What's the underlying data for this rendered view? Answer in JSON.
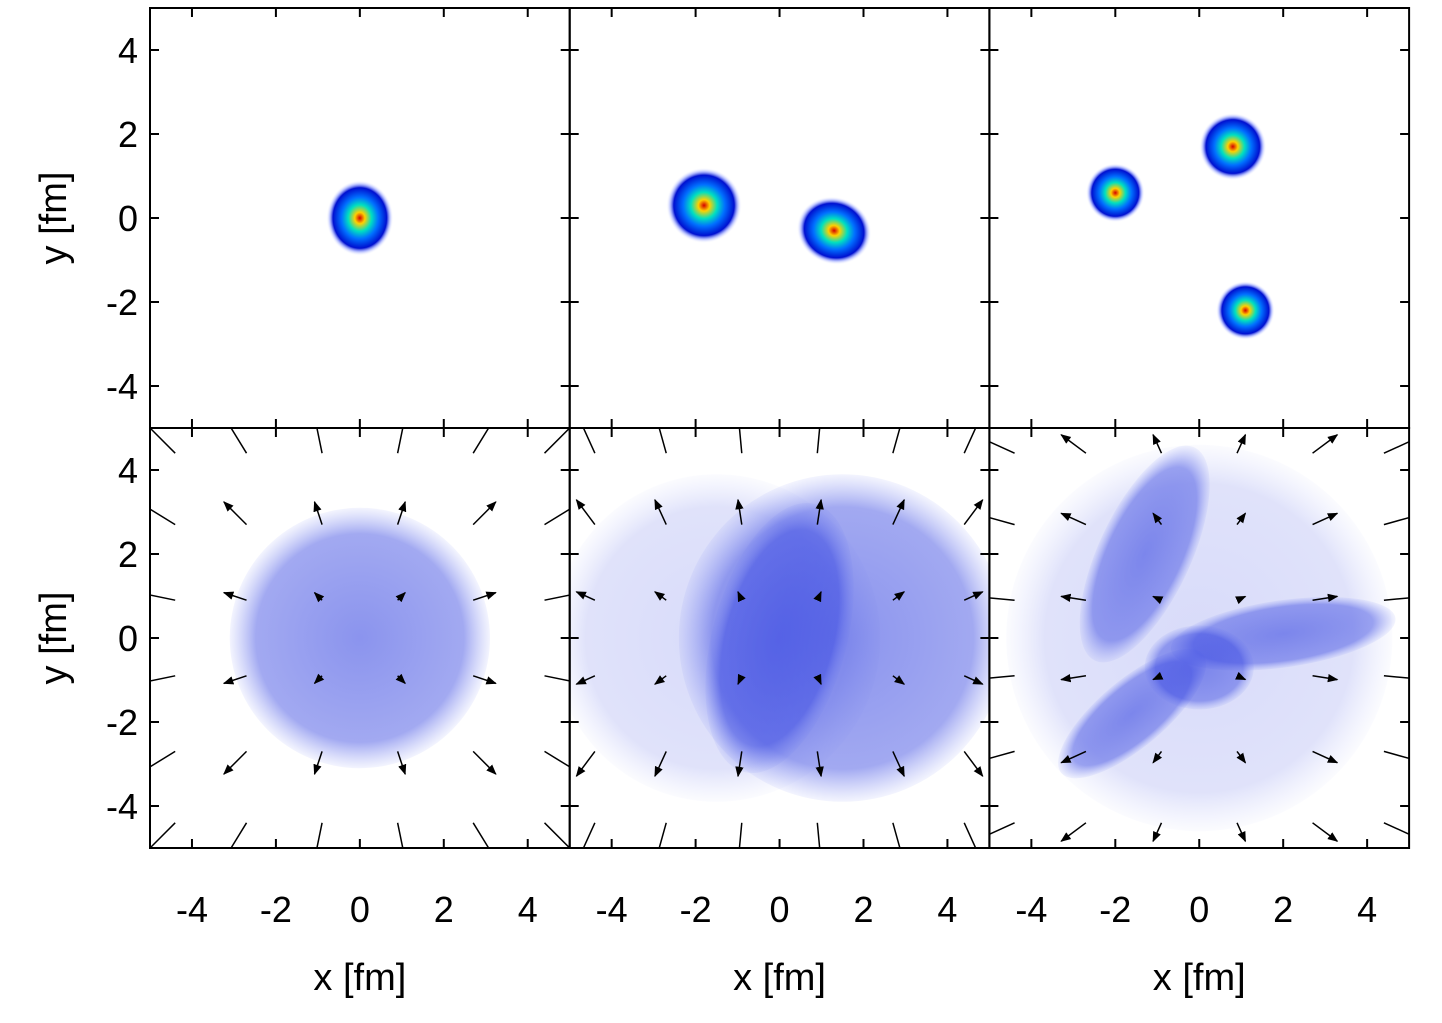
{
  "chart_data": [
    {
      "type": "heatmap",
      "colormap": "jet",
      "ylabel": "y [fm]",
      "xlim": [
        -5,
        5
      ],
      "ylim": [
        -5,
        5
      ],
      "xticks": [
        -4,
        -2,
        0,
        2,
        4
      ],
      "yticks": [
        4,
        2,
        0,
        -2,
        -4
      ],
      "blobs": [
        [
          0,
          0,
          0.8,
          0.9,
          0
        ]
      ],
      "arrows": []
    },
    {
      "type": "heatmap",
      "colormap": "jet",
      "xlim": [
        -5,
        5
      ],
      "ylim": [
        -5,
        5
      ],
      "xticks": [
        -4,
        -2,
        0,
        2,
        4
      ],
      "yticks": [
        4,
        2,
        0,
        -2,
        -4
      ],
      "blobs": [
        [
          -1.8,
          0.3,
          0.9,
          0.9,
          0
        ],
        [
          1.3,
          -0.3,
          0.9,
          0.8,
          20
        ]
      ],
      "arrows": []
    },
    {
      "type": "heatmap",
      "colormap": "jet",
      "xlim": [
        -5,
        5
      ],
      "ylim": [
        -5,
        5
      ],
      "xticks": [
        -4,
        -2,
        0,
        2,
        4
      ],
      "yticks": [
        4,
        2,
        0,
        -2,
        -4
      ],
      "blobs": [
        [
          -2,
          0.6,
          0.7,
          0.7,
          0
        ],
        [
          0.8,
          1.7,
          0.8,
          0.8,
          0
        ],
        [
          1.1,
          -2.2,
          0.7,
          0.7,
          0
        ]
      ],
      "arrows": []
    },
    {
      "type": "heatmap",
      "colormap": "blue",
      "xlabel": "x [fm]",
      "ylabel": "y [fm]",
      "xlim": [
        -5,
        5
      ],
      "ylim": [
        -5,
        5
      ],
      "xticks": [
        -4,
        -2,
        0,
        2,
        4
      ],
      "yticks": [
        4,
        2,
        0,
        -2,
        -4
      ],
      "blobs": [
        [
          0,
          0,
          3.1,
          3.1,
          0
        ]
      ],
      "arrows": [
        [
          -4.4,
          4.4,
          -0.88,
          0.88
        ],
        [
          -2.7,
          4.4,
          -0.54,
          0.88
        ],
        [
          -0.9,
          4.4,
          -0.18,
          0.88
        ],
        [
          0.9,
          4.4,
          0.18,
          0.88
        ],
        [
          2.7,
          4.4,
          0.54,
          0.88
        ],
        [
          4.4,
          4.4,
          0.88,
          0.88
        ],
        [
          -4.4,
          2.7,
          -0.88,
          0.54
        ],
        [
          -2.7,
          2.7,
          -0.54,
          0.54
        ],
        [
          -0.9,
          2.7,
          -0.18,
          0.54
        ],
        [
          0.9,
          2.7,
          0.18,
          0.54
        ],
        [
          2.7,
          2.7,
          0.54,
          0.54
        ],
        [
          4.4,
          2.7,
          0.88,
          0.54
        ],
        [
          -4.4,
          0.9,
          -0.88,
          0.18
        ],
        [
          -2.7,
          0.9,
          -0.54,
          0.18
        ],
        [
          -0.9,
          0.9,
          -0.18,
          0.18
        ],
        [
          0.9,
          0.9,
          0.18,
          0.18
        ],
        [
          2.7,
          0.9,
          0.54,
          0.18
        ],
        [
          4.4,
          0.9,
          0.88,
          0.18
        ],
        [
          -4.4,
          -0.9,
          -0.88,
          -0.18
        ],
        [
          -2.7,
          -0.9,
          -0.54,
          -0.18
        ],
        [
          -0.9,
          -0.9,
          -0.18,
          -0.18
        ],
        [
          0.9,
          -0.9,
          0.18,
          -0.18
        ],
        [
          2.7,
          -0.9,
          0.54,
          -0.18
        ],
        [
          4.4,
          -0.9,
          0.88,
          -0.18
        ],
        [
          -4.4,
          -2.7,
          -0.88,
          -0.54
        ],
        [
          -2.7,
          -2.7,
          -0.54,
          -0.54
        ],
        [
          -0.9,
          -2.7,
          -0.18,
          -0.54
        ],
        [
          0.9,
          -2.7,
          0.18,
          -0.54
        ],
        [
          2.7,
          -2.7,
          0.54,
          -0.54
        ],
        [
          4.4,
          -2.7,
          0.88,
          -0.54
        ],
        [
          -4.4,
          -4.4,
          -0.88,
          -0.88
        ],
        [
          -2.7,
          -4.4,
          -0.54,
          -0.88
        ],
        [
          -0.9,
          -4.4,
          -0.18,
          -0.88
        ],
        [
          0.9,
          -4.4,
          0.18,
          -0.88
        ],
        [
          2.7,
          -4.4,
          0.54,
          -0.88
        ],
        [
          4.4,
          -4.4,
          0.88,
          -0.88
        ]
      ]
    },
    {
      "type": "heatmap",
      "colormap": "blue",
      "xlabel": "x [fm]",
      "xlim": [
        -5,
        5
      ],
      "ylim": [
        -5,
        5
      ],
      "xticks": [
        -4,
        -2,
        0,
        2,
        4
      ],
      "yticks": [
        4,
        2,
        0,
        -2,
        -4
      ],
      "blobs": [
        [
          -1.5,
          0,
          3.9,
          3.9,
          0
        ],
        [
          1.5,
          0,
          3.9,
          3.9,
          0
        ],
        [
          0,
          0,
          1.6,
          3.3,
          15
        ]
      ],
      "arrows": [
        [
          -4.4,
          4.4,
          -0.44,
          0.97
        ],
        [
          -2.7,
          4.4,
          -0.27,
          0.97
        ],
        [
          -0.9,
          4.4,
          -0.09,
          0.97
        ],
        [
          0.9,
          4.4,
          0.09,
          0.97
        ],
        [
          2.7,
          4.4,
          0.27,
          0.97
        ],
        [
          4.4,
          4.4,
          0.44,
          0.97
        ],
        [
          -4.4,
          2.7,
          -0.44,
          0.59
        ],
        [
          -2.7,
          2.7,
          -0.27,
          0.59
        ],
        [
          -0.9,
          2.7,
          -0.09,
          0.59
        ],
        [
          0.9,
          2.7,
          0.09,
          0.59
        ],
        [
          2.7,
          2.7,
          0.27,
          0.59
        ],
        [
          4.4,
          2.7,
          0.44,
          0.59
        ],
        [
          -4.4,
          0.9,
          -0.44,
          0.2
        ],
        [
          -2.7,
          0.9,
          -0.27,
          0.2
        ],
        [
          -0.9,
          0.9,
          -0.09,
          0.2
        ],
        [
          0.9,
          0.9,
          0.09,
          0.2
        ],
        [
          2.7,
          0.9,
          0.27,
          0.2
        ],
        [
          4.4,
          0.9,
          0.44,
          0.2
        ],
        [
          -4.4,
          -0.9,
          -0.44,
          -0.2
        ],
        [
          -2.7,
          -0.9,
          -0.27,
          -0.2
        ],
        [
          -0.9,
          -0.9,
          -0.09,
          -0.2
        ],
        [
          0.9,
          -0.9,
          0.09,
          -0.2
        ],
        [
          2.7,
          -0.9,
          0.27,
          -0.2
        ],
        [
          4.4,
          -0.9,
          0.44,
          -0.2
        ],
        [
          -4.4,
          -2.7,
          -0.44,
          -0.59
        ],
        [
          -2.7,
          -2.7,
          -0.27,
          -0.59
        ],
        [
          -0.9,
          -2.7,
          -0.09,
          -0.59
        ],
        [
          0.9,
          -2.7,
          0.09,
          -0.59
        ],
        [
          2.7,
          -2.7,
          0.27,
          -0.59
        ],
        [
          4.4,
          -2.7,
          0.44,
          -0.59
        ],
        [
          -4.4,
          -4.4,
          -0.44,
          -0.97
        ],
        [
          -2.7,
          -4.4,
          -0.27,
          -0.97
        ],
        [
          -0.9,
          -4.4,
          -0.09,
          -0.97
        ],
        [
          0.9,
          -4.4,
          0.09,
          -0.97
        ],
        [
          2.7,
          -4.4,
          0.27,
          -0.97
        ],
        [
          4.4,
          -4.4,
          0.44,
          -0.97
        ]
      ]
    },
    {
      "type": "heatmap",
      "colormap": "blue",
      "xlabel": "x [fm]",
      "xlim": [
        -5,
        5
      ],
      "ylim": [
        -5,
        5
      ],
      "xticks": [
        -4,
        -2,
        0,
        2,
        4
      ],
      "yticks": [
        4,
        2,
        0,
        -2,
        -4
      ],
      "blobs": [
        [
          0,
          0,
          4.6,
          4.6,
          0
        ],
        [
          -1.3,
          2,
          1.1,
          2.8,
          25
        ],
        [
          2,
          0.1,
          2.7,
          0.8,
          -8
        ],
        [
          -1.6,
          -1.8,
          0.8,
          2.2,
          50
        ],
        [
          0,
          -0.7,
          1.3,
          1,
          0
        ]
      ],
      "arrows": [
        [
          -4.4,
          4.4,
          -0.97,
          0.44
        ],
        [
          -2.7,
          4.4,
          -0.59,
          0.44
        ],
        [
          -0.9,
          4.4,
          -0.2,
          0.44
        ],
        [
          0.9,
          4.4,
          0.2,
          0.44
        ],
        [
          2.7,
          4.4,
          0.59,
          0.44
        ],
        [
          4.4,
          4.4,
          0.97,
          0.44
        ],
        [
          -4.4,
          2.7,
          -0.97,
          0.27
        ],
        [
          -2.7,
          2.7,
          -0.59,
          0.27
        ],
        [
          -0.9,
          2.7,
          -0.2,
          0.27
        ],
        [
          0.9,
          2.7,
          0.2,
          0.27
        ],
        [
          2.7,
          2.7,
          0.59,
          0.27
        ],
        [
          4.4,
          2.7,
          0.97,
          0.27
        ],
        [
          -4.4,
          0.9,
          -0.97,
          0.09
        ],
        [
          -2.7,
          0.9,
          -0.59,
          0.09
        ],
        [
          -0.9,
          0.9,
          -0.2,
          0.09
        ],
        [
          0.9,
          0.9,
          0.2,
          0.09
        ],
        [
          2.7,
          0.9,
          0.59,
          0.09
        ],
        [
          4.4,
          0.9,
          0.97,
          0.09
        ],
        [
          -4.4,
          -0.9,
          -0.97,
          -0.09
        ],
        [
          -2.7,
          -0.9,
          -0.59,
          -0.09
        ],
        [
          -0.9,
          -0.9,
          -0.2,
          -0.09
        ],
        [
          0.9,
          -0.9,
          0.2,
          -0.09
        ],
        [
          2.7,
          -0.9,
          0.59,
          -0.09
        ],
        [
          4.4,
          -0.9,
          0.97,
          -0.09
        ],
        [
          -4.4,
          -2.7,
          -0.97,
          -0.27
        ],
        [
          -2.7,
          -2.7,
          -0.59,
          -0.27
        ],
        [
          -0.9,
          -2.7,
          -0.2,
          -0.27
        ],
        [
          0.9,
          -2.7,
          0.2,
          -0.27
        ],
        [
          2.7,
          -2.7,
          0.59,
          -0.27
        ],
        [
          4.4,
          -2.7,
          0.97,
          -0.27
        ],
        [
          -4.4,
          -4.4,
          -0.97,
          -0.44
        ],
        [
          -2.7,
          -4.4,
          -0.59,
          -0.44
        ],
        [
          -0.9,
          -4.4,
          -0.2,
          -0.44
        ],
        [
          0.9,
          -4.4,
          0.2,
          -0.44
        ],
        [
          2.7,
          -4.4,
          0.59,
          -0.44
        ],
        [
          4.4,
          -4.4,
          0.97,
          -0.44
        ]
      ]
    }
  ]
}
